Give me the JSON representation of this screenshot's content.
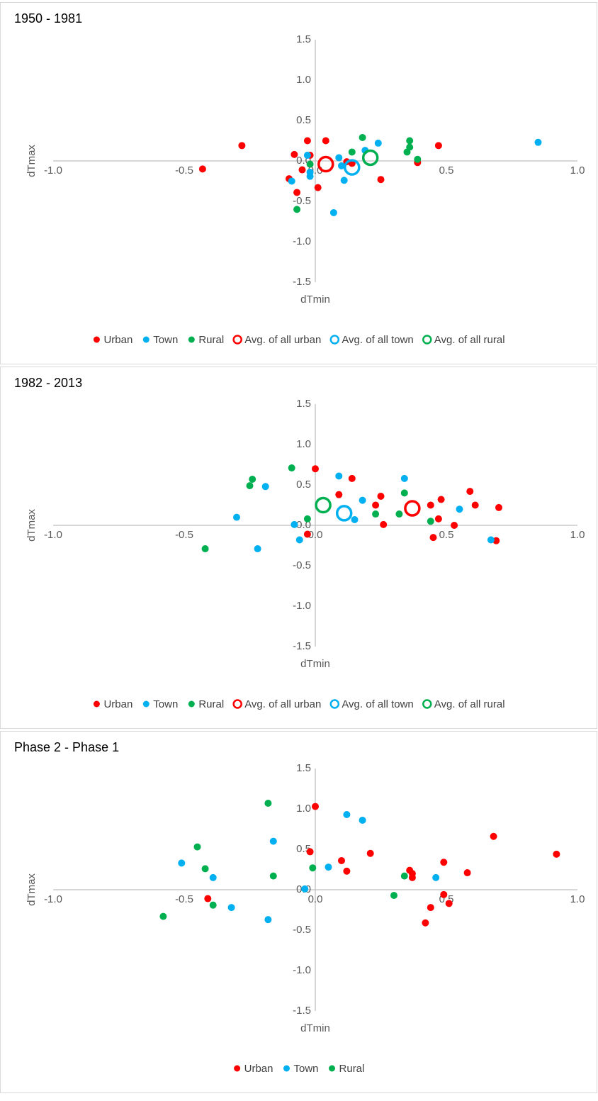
{
  "chart_data": [
    {
      "type": "scatter",
      "title": "1950 - 1981",
      "x_label": "dTmin",
      "y_label": "dTmax",
      "xlim": [
        -1,
        1
      ],
      "ylim": [
        -1.5,
        1.5
      ],
      "xticks": [
        {
          "value": -1,
          "label": "-1.0"
        },
        -0.5,
        {
          "value": 0,
          "label": "0.0"
        },
        0.5,
        {
          "value": 1,
          "label": "1.0"
        }
      ],
      "yticks": [
        -1.5,
        {
          "value": -1,
          "label": "-1.0"
        },
        -0.5,
        {
          "value": 0,
          "label": "0.0"
        },
        0.5,
        {
          "value": 1,
          "label": "1.0"
        },
        1.5
      ],
      "series": [
        {
          "name": "Urban",
          "color": "#ff0000",
          "marker": "dot",
          "x": [
            -0.43,
            -0.28,
            -0.08,
            -0.03,
            0.04,
            -0.02,
            -0.05,
            -0.1,
            -0.07,
            0.01,
            0.12,
            0.14,
            0.25,
            0.39,
            0.47
          ],
          "values": [
            -0.1,
            0.19,
            0.08,
            0.25,
            0.25,
            0.07,
            -0.11,
            -0.22,
            -0.39,
            -0.33,
            -0.01,
            -0.03,
            -0.23,
            -0.02,
            0.19
          ]
        },
        {
          "name": "Town",
          "color": "#00b0f0",
          "marker": "dot",
          "x": [
            -0.03,
            -0.02,
            -0.09,
            -0.02,
            0.09,
            0.1,
            0.11,
            0.07,
            0.19,
            0.24,
            0.85
          ],
          "values": [
            0.07,
            -0.14,
            -0.25,
            -0.19,
            0.04,
            -0.06,
            -0.24,
            -0.64,
            0.13,
            0.22,
            0.23
          ]
        },
        {
          "name": "Rural",
          "color": "#00b050",
          "marker": "dot",
          "x": [
            -0.07,
            -0.02,
            0.14,
            0.18,
            0.36,
            0.36,
            0.35,
            0.39
          ],
          "values": [
            -0.6,
            -0.04,
            0.11,
            0.29,
            0.25,
            0.17,
            0.11,
            0.02
          ]
        },
        {
          "name": "Avg. of all urban",
          "color": "#ff0000",
          "marker": "ring",
          "x": [
            0.04
          ],
          "values": [
            -0.04
          ]
        },
        {
          "name": "Avg. of all town",
          "color": "#00b0f0",
          "marker": "ring",
          "x": [
            0.14
          ],
          "values": [
            -0.08
          ]
        },
        {
          "name": "Avg. of all rural",
          "color": "#00b050",
          "marker": "ring",
          "x": [
            0.21
          ],
          "values": [
            0.04
          ]
        }
      ]
    },
    {
      "type": "scatter",
      "title": "1982 - 2013",
      "x_label": "dTmin",
      "y_label": "dTmax",
      "xlim": [
        -1,
        1
      ],
      "ylim": [
        -1.5,
        1.5
      ],
      "xticks": [
        {
          "value": -1,
          "label": "-1.0"
        },
        -0.5,
        {
          "value": 0,
          "label": "0.0"
        },
        0.5,
        {
          "value": 1,
          "label": "1.0"
        }
      ],
      "yticks": [
        -1.5,
        {
          "value": -1,
          "label": "-1.0"
        },
        -0.5,
        {
          "value": 0,
          "label": "0.0"
        },
        0.5,
        {
          "value": 1,
          "label": "1.0"
        },
        1.5
      ],
      "series": [
        {
          "name": "Urban",
          "color": "#ff0000",
          "marker": "dot",
          "x": [
            0.0,
            0.09,
            0.14,
            0.25,
            0.23,
            0.26,
            -0.03,
            0.44,
            0.48,
            0.47,
            0.45,
            0.53,
            0.59,
            0.61,
            0.7,
            0.69
          ],
          "values": [
            0.7,
            0.38,
            0.58,
            0.36,
            0.25,
            0.01,
            -0.11,
            0.25,
            0.32,
            0.08,
            -0.15,
            0.0,
            0.42,
            0.25,
            0.22,
            -0.19
          ]
        },
        {
          "name": "Town",
          "color": "#00b0f0",
          "marker": "dot",
          "x": [
            -0.3,
            -0.19,
            -0.22,
            -0.08,
            -0.06,
            0.09,
            0.18,
            0.15,
            0.34,
            0.55,
            0.67
          ],
          "values": [
            0.1,
            0.48,
            -0.29,
            0.01,
            -0.18,
            0.61,
            0.31,
            0.07,
            0.58,
            0.2,
            -0.18
          ]
        },
        {
          "name": "Rural",
          "color": "#00b050",
          "marker": "dot",
          "x": [
            -0.42,
            -0.25,
            -0.24,
            -0.09,
            -0.03,
            0.23,
            0.32,
            0.34,
            0.44
          ],
          "values": [
            -0.29,
            0.49,
            0.57,
            0.71,
            0.08,
            0.14,
            0.14,
            0.4,
            0.05
          ]
        },
        {
          "name": "Avg. of all urban",
          "color": "#ff0000",
          "marker": "ring",
          "x": [
            0.37
          ],
          "values": [
            0.21
          ]
        },
        {
          "name": "Avg. of all town",
          "color": "#00b0f0",
          "marker": "ring",
          "x": [
            0.11
          ],
          "values": [
            0.15
          ]
        },
        {
          "name": "Avg. of all rural",
          "color": "#00b050",
          "marker": "ring",
          "x": [
            0.03
          ],
          "values": [
            0.25
          ]
        }
      ]
    },
    {
      "type": "scatter",
      "title": "Phase 2 - Phase 1",
      "x_label": "dTmin",
      "y_label": "dTmax",
      "xlim": [
        -1,
        1
      ],
      "ylim": [
        -1.5,
        1.5
      ],
      "xticks": [
        {
          "value": -1,
          "label": "-1.0"
        },
        -0.5,
        {
          "value": 0,
          "label": "0.0"
        },
        0.5,
        {
          "value": 1,
          "label": "1.0"
        }
      ],
      "yticks": [
        -1.5,
        {
          "value": -1,
          "label": "-1.0"
        },
        -0.5,
        {
          "value": 0,
          "label": "0.0"
        },
        0.5,
        {
          "value": 1,
          "label": "1.0"
        },
        1.5
      ],
      "series": [
        {
          "name": "Urban",
          "color": "#ff0000",
          "marker": "dot",
          "x": [
            -0.41,
            0.0,
            -0.02,
            0.1,
            0.12,
            0.21,
            0.36,
            0.37,
            0.37,
            0.44,
            0.49,
            0.49,
            0.51,
            0.42,
            0.58,
            0.68,
            0.92
          ],
          "values": [
            -0.11,
            1.03,
            0.47,
            0.36,
            0.23,
            0.45,
            0.24,
            0.2,
            0.15,
            -0.22,
            -0.06,
            0.34,
            -0.17,
            -0.41,
            0.21,
            0.66,
            0.44
          ]
        },
        {
          "name": "Town",
          "color": "#00b0f0",
          "marker": "dot",
          "x": [
            -0.51,
            -0.39,
            -0.32,
            -0.16,
            -0.18,
            -0.04,
            0.05,
            0.12,
            0.18,
            0.46
          ],
          "values": [
            0.33,
            0.15,
            -0.22,
            0.6,
            -0.37,
            0.01,
            0.28,
            0.93,
            0.86,
            0.15
          ]
        },
        {
          "name": "Rural",
          "color": "#00b050",
          "marker": "dot",
          "x": [
            -0.58,
            -0.45,
            -0.42,
            -0.39,
            -0.18,
            -0.16,
            -0.01,
            0.3,
            0.34
          ],
          "values": [
            -0.33,
            0.53,
            0.26,
            -0.19,
            1.07,
            0.17,
            0.27,
            -0.07,
            0.17
          ]
        }
      ]
    }
  ]
}
